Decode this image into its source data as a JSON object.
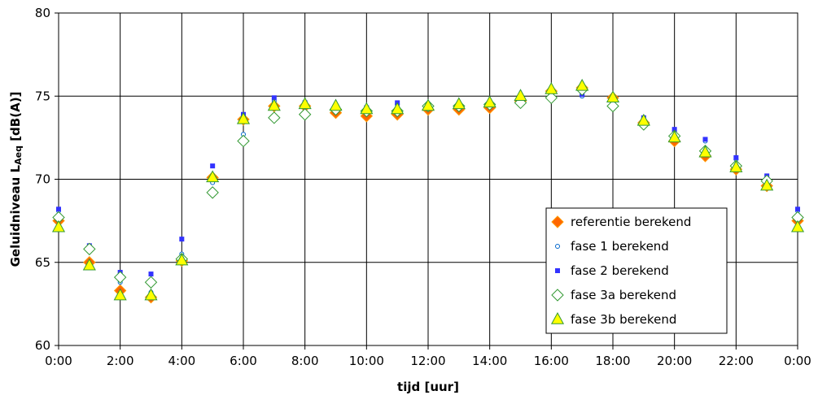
{
  "chart_data": {
    "type": "scatter",
    "xlabel": "tijd [uur]",
    "ylabel_main": "Geluidniveau L",
    "ylabel_sub": "Aeq",
    "ylabel_suffix": " [dB(A)]",
    "xlim": [
      0,
      24
    ],
    "ylim": [
      60,
      80
    ],
    "x_ticks": [
      0,
      2,
      4,
      6,
      8,
      10,
      12,
      14,
      16,
      18,
      20,
      22,
      24
    ],
    "x_tick_labels": [
      "0:00",
      "2:00",
      "4:00",
      "6:00",
      "8:00",
      "10:00",
      "12:00",
      "14:00",
      "16:00",
      "18:00",
      "20:00",
      "22:00",
      "0:00"
    ],
    "y_ticks": [
      60,
      65,
      70,
      75,
      80
    ],
    "y_tick_labels": [
      "60",
      "65",
      "70",
      "75",
      "80"
    ],
    "grid": true,
    "legend_position": "bottom-right",
    "x": [
      0,
      1,
      2,
      3,
      4,
      5,
      6,
      7,
      8,
      9,
      10,
      11,
      12,
      13,
      14,
      15,
      16,
      17,
      18,
      19,
      20,
      21,
      22,
      23,
      24
    ],
    "series": [
      {
        "name": "referentie berekend",
        "marker": "diamond",
        "fill": "#ff6600",
        "stroke": "#ff9900",
        "values": [
          67.5,
          65.0,
          63.3,
          62.9,
          65.1,
          70.1,
          73.6,
          74.4,
          74.4,
          74.0,
          73.8,
          73.9,
          74.2,
          74.2,
          74.3,
          74.7,
          75.3,
          75.5,
          74.9,
          73.4,
          72.3,
          71.4,
          70.6,
          69.6,
          67.5
        ]
      },
      {
        "name": "fase 1 berekend",
        "marker": "circle",
        "fill": "#ffffff",
        "stroke": "#0066cc",
        "values": [
          68.1,
          65.9,
          63.8,
          63.2,
          65.5,
          69.8,
          72.7,
          74.7,
          74.5,
          74.2,
          74.2,
          74.5,
          74.4,
          74.4,
          74.5,
          74.7,
          74.9,
          75.0,
          74.8,
          73.6,
          72.9,
          72.3,
          71.2,
          70.1,
          68.1
        ]
      },
      {
        "name": "fase 2 berekend",
        "marker": "square",
        "fill": "#3333ff",
        "stroke": "#3333ff",
        "values": [
          68.2,
          66.0,
          64.4,
          64.3,
          66.4,
          70.8,
          73.9,
          74.9,
          74.6,
          74.3,
          74.3,
          74.6,
          74.5,
          74.5,
          74.6,
          74.8,
          75.0,
          75.1,
          74.9,
          73.7,
          73.0,
          72.4,
          71.3,
          70.2,
          68.2
        ]
      },
      {
        "name": "fase 3a berekend",
        "marker": "diamond",
        "fill": "#ffffff",
        "stroke": "#339933",
        "values": [
          67.7,
          65.8,
          64.1,
          63.8,
          65.2,
          69.2,
          72.3,
          73.7,
          73.9,
          74.2,
          74.1,
          74.1,
          74.4,
          74.4,
          74.5,
          74.6,
          74.9,
          75.4,
          74.4,
          73.3,
          72.6,
          71.7,
          70.8,
          69.9,
          67.7
        ]
      },
      {
        "name": "fase 3b berekend",
        "marker": "triangle",
        "fill": "#ffff00",
        "stroke": "#339933",
        "values": [
          67.1,
          64.8,
          63.0,
          63.0,
          65.1,
          70.1,
          73.6,
          74.4,
          74.5,
          74.4,
          74.2,
          74.2,
          74.4,
          74.5,
          74.6,
          75.0,
          75.4,
          75.6,
          74.9,
          73.5,
          72.5,
          71.6,
          70.7,
          69.6,
          67.1
        ]
      }
    ]
  }
}
